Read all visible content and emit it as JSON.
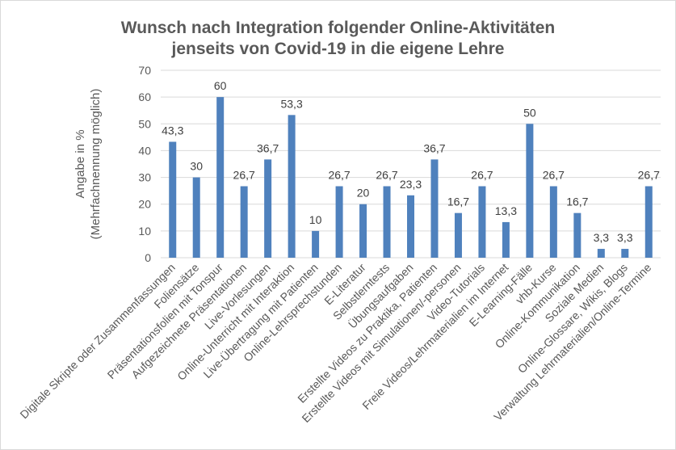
{
  "chart_data": {
    "type": "bar",
    "title_lines": [
      "Wunsch nach Integration folgender Online-Aktivitäten",
      "jenseits von Covid-19 in die eigene Lehre"
    ],
    "title": "Wunsch nach Integration folgender Online-Aktivitäten jenseits von Covid-19 in die eigene Lehre",
    "xlabel": "",
    "ylabel_lines": [
      "Angabe in %",
      "(Mehrfachnennung möglich)"
    ],
    "ylabel": "Angabe in % (Mehrfachnennung möglich)",
    "ylim": [
      0,
      70
    ],
    "yticks": [
      0,
      10,
      20,
      30,
      40,
      50,
      60,
      70
    ],
    "grid": true,
    "legend": "none",
    "bar_color": "#4f81bd",
    "categories": [
      "Digitale Skripte oder Zusammenfassungen",
      "Foliensätze",
      "Präsentationsfolien mit Tonspur",
      "Aufgezeichnete Präsentationen",
      "Live-Vorlesungen",
      "Online-Unterricht mit Interaktion",
      "Live-Übertragung mit Patienten",
      "Online-Lehrsprechstunden",
      "E-Literatur",
      "Selbstlerntests",
      "Übungsaufgaben",
      "Erstellte Videos zu Praktika, Patienten",
      "Erstellte Videos mit Simulationen/-personen",
      "Video-Tutorials",
      "Freie Videos/Lehrmaterialien im Internet",
      "E-Learning-Fälle",
      "vhb-Kurse",
      "Online-Kommunikation",
      "Soziale Medien",
      "Online-Glossare, Wikis, Blogs",
      "Verwaltung Lehrmaterialien/Online-Termine"
    ],
    "values": [
      43.3,
      30,
      60,
      26.7,
      36.7,
      53.3,
      10,
      26.7,
      20,
      26.7,
      23.3,
      36.7,
      16.7,
      26.7,
      13.3,
      50,
      26.7,
      16.7,
      3.3,
      3.3,
      26.7
    ],
    "data_labels": [
      "43,3",
      "30",
      "60",
      "26,7",
      "36,7",
      "53,3",
      "10",
      "26,7",
      "20",
      "26,7",
      "23,3",
      "36,7",
      "16,7",
      "26,7",
      "13,3",
      "50",
      "26,7",
      "16,7",
      "3,3",
      "3,3",
      "26,7"
    ]
  }
}
